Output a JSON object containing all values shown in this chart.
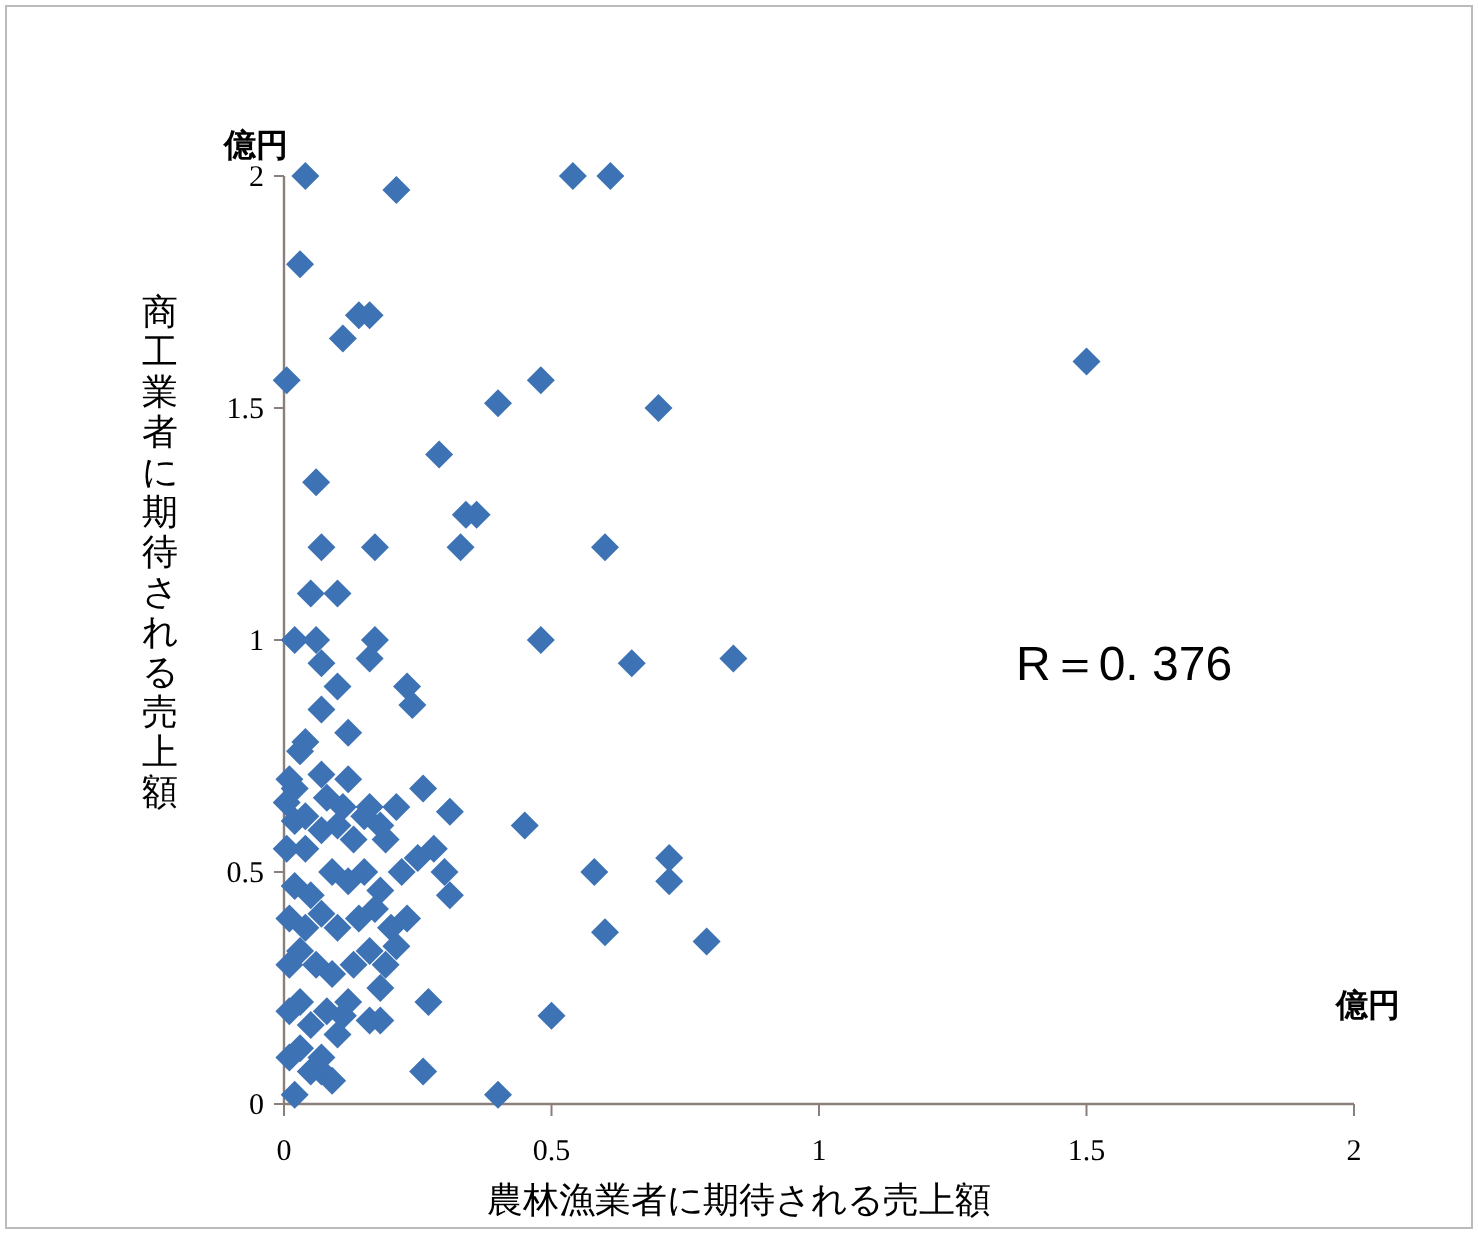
{
  "chart_data": {
    "type": "scatter",
    "xlabel": "農林漁業者に期待される売上額",
    "ylabel": "商工業者に期待される売上額",
    "xlim": [
      0,
      2
    ],
    "ylim": [
      0,
      2
    ],
    "xticks": [
      0,
      0.5,
      1,
      1.5,
      2
    ],
    "yticks": [
      0,
      0.5,
      1,
      1.5,
      2
    ],
    "grid": false,
    "marker": "diamond",
    "annotations": [
      "億円",
      "億円",
      "R＝0. 376"
    ],
    "series": [
      {
        "color": "#3d72b4",
        "x": [
          0.04,
          0.21,
          0.54,
          0.61,
          0.03,
          0.14,
          0.16,
          0.11,
          0.005,
          0.48,
          0.4,
          0.7,
          0.29,
          0.06,
          0.34,
          0.36,
          0.07,
          0.17,
          0.33,
          0.6,
          0.05,
          0.1,
          0.02,
          0.06,
          0.17,
          0.48,
          0.65,
          0.07,
          0.16,
          0.1,
          0.23,
          0.24,
          0.07,
          0.12,
          0.04,
          0.03,
          0.01,
          0.07,
          0.12,
          0.26,
          0.21,
          0.31,
          0.45,
          0.58,
          0.6,
          0.27,
          0.5,
          0.16,
          0.26,
          0.4,
          0.02,
          0.84,
          0.72,
          0.72,
          0.79,
          1.5,
          0.31,
          0.18,
          0.11,
          0.07,
          0.02,
          0.07,
          0.11,
          0.16,
          0.19,
          0.04,
          0.02,
          0.05,
          0.09,
          0.12,
          0.15,
          0.18,
          0.22,
          0.25,
          0.28,
          0.3,
          0.01,
          0.04,
          0.07,
          0.1,
          0.14,
          0.17,
          0.2,
          0.23,
          0.01,
          0.03,
          0.06,
          0.09,
          0.13,
          0.16,
          0.19,
          0.21,
          0.01,
          0.03,
          0.05,
          0.08,
          0.1,
          0.12,
          0.18,
          0.01,
          0.03,
          0.05,
          0.07,
          0.09,
          0.005,
          0.005,
          0.02,
          0.04,
          0.08,
          0.1,
          0.13,
          0.15,
          0.18
        ],
        "values": [
          2.0,
          1.97,
          2.0,
          2.0,
          1.81,
          1.7,
          1.7,
          1.65,
          1.56,
          1.56,
          1.51,
          1.5,
          1.4,
          1.34,
          1.27,
          1.27,
          1.2,
          1.2,
          1.2,
          1.2,
          1.1,
          1.1,
          1.0,
          1.0,
          1.0,
          1.0,
          0.95,
          0.95,
          0.96,
          0.9,
          0.9,
          0.86,
          0.85,
          0.8,
          0.78,
          0.76,
          0.7,
          0.71,
          0.7,
          0.68,
          0.64,
          0.63,
          0.6,
          0.5,
          0.37,
          0.22,
          0.19,
          0.18,
          0.07,
          0.02,
          0.02,
          0.96,
          0.53,
          0.48,
          0.35,
          1.6,
          0.45,
          0.25,
          0.19,
          0.07,
          0.61,
          0.59,
          0.64,
          0.64,
          0.57,
          0.55,
          0.47,
          0.45,
          0.5,
          0.48,
          0.5,
          0.46,
          0.5,
          0.53,
          0.55,
          0.5,
          0.4,
          0.38,
          0.41,
          0.38,
          0.4,
          0.42,
          0.38,
          0.4,
          0.3,
          0.33,
          0.3,
          0.28,
          0.3,
          0.33,
          0.3,
          0.34,
          0.2,
          0.22,
          0.17,
          0.2,
          0.15,
          0.22,
          0.18,
          0.1,
          0.12,
          0.07,
          0.1,
          0.05,
          0.65,
          0.55,
          0.68,
          0.62,
          0.66,
          0.6,
          0.57,
          0.62,
          0.6
        ]
      }
    ]
  }
}
